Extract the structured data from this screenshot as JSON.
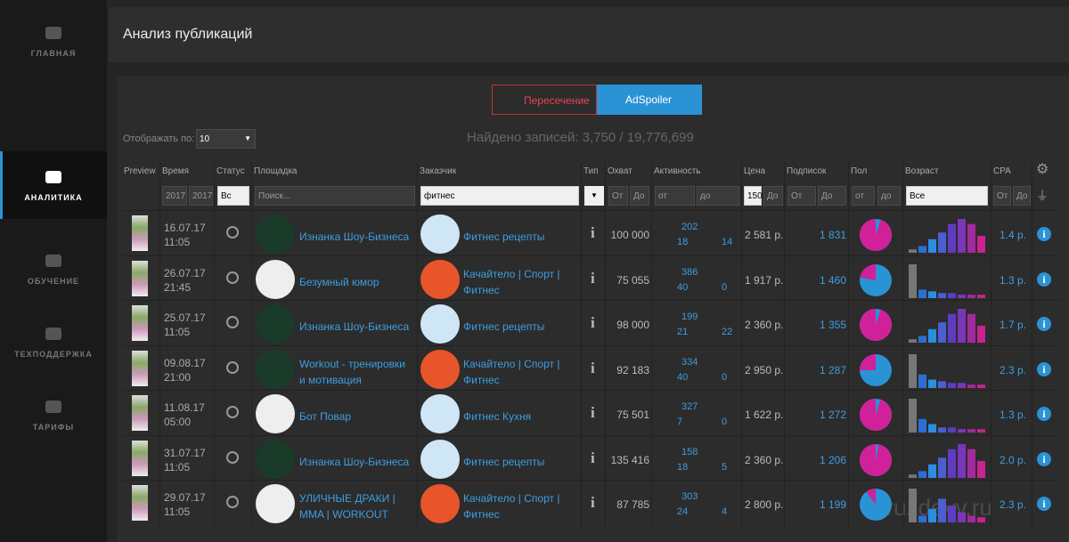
{
  "sidebar": {
    "items": [
      "ГЛАВНАЯ",
      "АНАЛИТИКА",
      "ОБУЧЕНИЕ",
      "ТЕХПОДДЕРЖКА",
      "ТАРИФЫ"
    ],
    "active": 1
  },
  "header": {
    "title": "Анализ публикаций"
  },
  "toggle": {
    "options": [
      "Пересечение",
      "AdSpoiler"
    ],
    "active": 1
  },
  "controls": {
    "per_page_label": "Отображать по:",
    "per_page": "10",
    "found": "Найдено записей: 3,750 / 19,776,699"
  },
  "table": {
    "columns": [
      "Preview",
      "Время",
      "Статус",
      "Площадка",
      "Заказчик",
      "Тип",
      "Охват",
      "Активность",
      "Цена",
      "Подписок",
      "Пол",
      "Возраст",
      "CPA"
    ],
    "filters": [
      "2017",
      "2017",
      "Вс",
      "Поиск...",
      "фитнес",
      "От",
      "До",
      "от",
      "до",
      "150",
      "До",
      "От",
      "До",
      "от",
      "до",
      "Все",
      "От",
      "До"
    ],
    "pie_colors": [
      "#d0219a",
      "#2a93d5"
    ],
    "age_colors": [
      "#777777",
      "#2a6fd5",
      "#2a8fe0",
      "#4a5fd0",
      "#5d3cc0",
      "#7a36b8",
      "#a32a9e",
      "#c8238f"
    ],
    "rows": [
      {
        "date": "16.07.17",
        "time": "11:05",
        "platform": "Изнанка Шоу-Бизнеса",
        "customer": "Фитнес рецепты",
        "reach": "100 000",
        "likes": 202,
        "reposts": 18,
        "comments": 14,
        "price": "2 581 р.",
        "subscribers": "1 831",
        "female_share": 95,
        "age": [
          2,
          4,
          8,
          12,
          17,
          20,
          17,
          10
        ],
        "cpa": "1.4 р."
      },
      {
        "date": "26.07.17",
        "time": "21:45",
        "platform": "Безумный юмор",
        "customer": "Качайтело | Спорт | Фитнес",
        "reach": "75 055",
        "likes": 386,
        "reposts": 40,
        "comments": 0,
        "price": "1 917 р.",
        "subscribers": "1 460",
        "female_share": 22,
        "age": [
          20,
          5,
          4,
          3,
          3,
          2,
          2,
          2
        ],
        "cpa": "1.3 р."
      },
      {
        "date": "25.07.17",
        "time": "11:05",
        "platform": "Изнанка Шоу-Бизнеса",
        "customer": "Фитнес рецепты",
        "reach": "98 000",
        "likes": 199,
        "reposts": 21,
        "comments": 22,
        "price": "2 360 р.",
        "subscribers": "1 355",
        "female_share": 95,
        "age": [
          2,
          4,
          8,
          12,
          17,
          20,
          17,
          10
        ],
        "cpa": "1.7 р."
      },
      {
        "date": "09.08.17",
        "time": "21:00",
        "platform": "Workout - тренировки и мотивация",
        "customer": "Качайтело | Спорт | Фитнес",
        "reach": "92 183",
        "likes": 334,
        "reposts": 40,
        "comments": 0,
        "price": "2 950 р.",
        "subscribers": "1 287",
        "female_share": 25,
        "age": [
          20,
          8,
          5,
          4,
          3,
          3,
          2,
          2
        ],
        "cpa": "2.3 р."
      },
      {
        "date": "11.08.17",
        "time": "05:00",
        "platform": "Бот Повар",
        "customer": "Фитнес Кухня",
        "reach": "75 501",
        "likes": 327,
        "reposts": 7,
        "comments": 0,
        "price": "1 622 р.",
        "subscribers": "1 272",
        "female_share": 95,
        "age": [
          20,
          8,
          5,
          3,
          3,
          2,
          2,
          2
        ],
        "cpa": "1.3 р."
      },
      {
        "date": "31.07.17",
        "time": "11:05",
        "platform": "Изнанка Шоу-Бизнеса",
        "customer": "Фитнес рецепты",
        "reach": "135 416",
        "likes": 158,
        "reposts": 18,
        "comments": 5,
        "price": "2 360 р.",
        "subscribers": "1 206",
        "female_share": 97,
        "age": [
          2,
          4,
          8,
          12,
          17,
          20,
          17,
          10
        ],
        "cpa": "2.0 р."
      },
      {
        "date": "29.07.17",
        "time": "11:05",
        "platform": "УЛИЧНЫЕ ДРАКИ | MMA | WORKOUT",
        "customer": "Качайтело | Спорт | Фитнес",
        "reach": "87 785",
        "likes": 303,
        "reposts": 24,
        "comments": 4,
        "price": "2 800 р.",
        "subscribers": "1 199",
        "female_share": 10,
        "age": [
          20,
          4,
          8,
          14,
          10,
          6,
          4,
          3
        ],
        "cpa": "2.3 р."
      }
    ]
  },
  "watermark": "gruzdevv.ru"
}
